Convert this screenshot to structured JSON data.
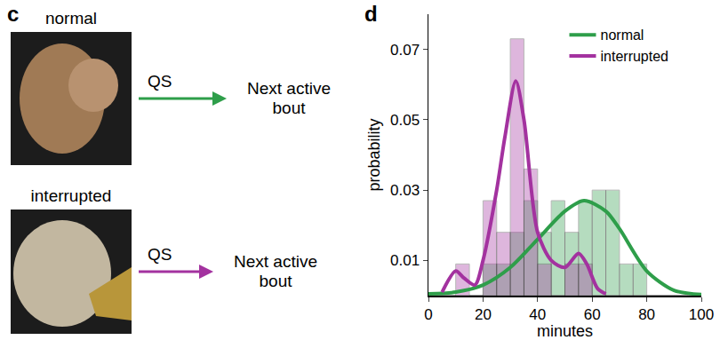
{
  "panel_c": {
    "label": "c",
    "rows": [
      {
        "condition": "normal",
        "arrow_label": "QS",
        "target": "Next active bout",
        "color": "#2e9e4a"
      },
      {
        "condition": "interrupted",
        "arrow_label": "QS",
        "target": "Next active bout",
        "color": "#a3329f"
      }
    ]
  },
  "chart_data": {
    "type": "histogram",
    "annotations": [
      "d"
    ],
    "x_label": "minutes",
    "y_label": "probability",
    "bins": [
      0,
      5,
      10,
      15,
      20,
      25,
      30,
      35,
      40,
      45,
      50,
      55,
      60,
      65,
      70,
      75,
      80,
      85,
      90,
      95,
      100
    ],
    "series": [
      {
        "name": "normal",
        "color": "#2e9e4a",
        "values": [
          0,
          0,
          0,
          0,
          0.009,
          0.009,
          0.018,
          0.027,
          0.018,
          0.027,
          0.018,
          0.027,
          0.03,
          0.03,
          0.009,
          0.009,
          0,
          0,
          0,
          0
        ],
        "curve": {
          "x": [
            0,
            10,
            20,
            30,
            40,
            50,
            57,
            65,
            70,
            80,
            90,
            100
          ],
          "values": [
            0.0005,
            0.001,
            0.003,
            0.008,
            0.016,
            0.024,
            0.027,
            0.024,
            0.019,
            0.007,
            0.0015,
            0.0003
          ]
        }
      },
      {
        "name": "interrupted",
        "color": "#a3329f",
        "values": [
          0,
          0,
          0.009,
          0,
          0.027,
          0.018,
          0.073,
          0.036,
          0.009,
          0,
          0.009,
          0.009,
          0,
          0,
          0,
          0,
          0,
          0,
          0,
          0
        ],
        "curve": {
          "x": [
            5,
            10,
            13,
            17,
            20,
            25,
            28,
            32,
            35,
            40,
            45,
            50,
            55,
            58,
            62,
            65
          ],
          "values": [
            0.001,
            0.007,
            0.005,
            0.003,
            0.01,
            0.03,
            0.045,
            0.061,
            0.05,
            0.018,
            0.01,
            0.008,
            0.012,
            0.009,
            0.002,
            0.0005
          ]
        }
      }
    ],
    "xlim": [
      0,
      100
    ],
    "ylim": [
      0,
      0.08
    ],
    "xticks": [
      0,
      20,
      40,
      60,
      80,
      100
    ],
    "yticks": [
      0.01,
      0.03,
      0.05,
      0.07
    ],
    "legend": "top right",
    "grid": false
  }
}
